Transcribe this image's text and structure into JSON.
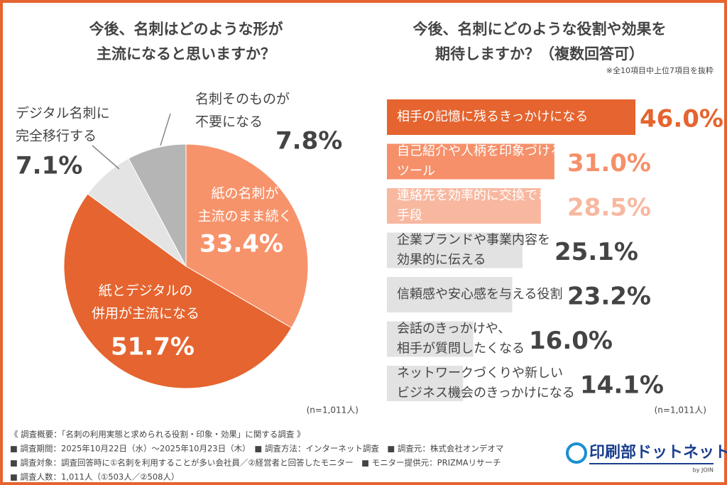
{
  "chart_data": [
    {
      "type": "pie",
      "title": [
        "今後、名刺はどのような形が",
        "主流になると思いますか？"
      ],
      "categories": [
        [
          "紙の名刺が",
          "主流のまま続く"
        ],
        [
          "紙とデジタルの",
          "併用が主流になる"
        ],
        [
          "デジタル名刺に",
          "完全移行する"
        ],
        [
          "名刺そのものが",
          "不要になる"
        ]
      ],
      "values": [
        33.4,
        51.7,
        7.1,
        7.8
      ],
      "value_labels": [
        "33.4%",
        "51.7%",
        "7.1%",
        "7.8%"
      ],
      "colors": [
        "#f7936b",
        "#e5642f",
        "#e4e4e4",
        "#b5b5b5"
      ],
      "note": "(n=1,011人)"
    },
    {
      "type": "bar",
      "title": [
        "今後、名刺にどのような役割や効果を",
        "期待しますか？（複数回答可）"
      ],
      "subtitle": "※全10項目中上位7項目を抜粋",
      "categories": [
        [
          "相手の記憶に残るきっかけになる"
        ],
        [
          "自己紹介や人柄を印象づける",
          "ツール"
        ],
        [
          "連絡先を効率的に交換できる",
          "手段"
        ],
        [
          "企業ブランドや事業内容を",
          "効果的に伝える"
        ],
        [
          "信頼感や安心感を与える役割"
        ],
        [
          "会話のきっかけや、",
          "相手が質問したくなる"
        ],
        [
          "ネットワークづくりや新しい",
          "ビジネス機会のきっかけになる"
        ]
      ],
      "values": [
        46.0,
        31.0,
        28.5,
        25.1,
        23.2,
        16.0,
        14.1
      ],
      "value_labels": [
        "46.0%",
        "31.0%",
        "28.5%",
        "25.1%",
        "23.2%",
        "16.0%",
        "14.1%"
      ],
      "colors": [
        "#e5642f",
        "#f5906a",
        "#f8b8a0",
        "#e2e2e2",
        "#e2e2e2",
        "#e2e2e2",
        "#e2e2e2"
      ],
      "label_colors": [
        "#ffffff",
        "#ffffff",
        "#ffffff",
        "#444444",
        "#444444",
        "#444444",
        "#444444"
      ],
      "value_label_colors": [
        "#e5642f",
        "#f5906a",
        "#f8b8a0",
        "#444444",
        "#444444",
        "#444444",
        "#444444"
      ],
      "note": "(n=1,011人)"
    }
  ],
  "footer": {
    "lines": [
      "《 調査概要：「名刺の利用実態と求められる役割・印象・効果」に関する調査 》",
      "■ 調査期間：2025年10月22日（水）〜2025年10月23日（木）　■ 調査方法：インターネット調査　■ 調査元：株式会社オンデオマ",
      "■ 調査対象：調査回答時に①名刺を利用することが多い会社員／②経営者と回答したモニター　■ モニター提供元：PRIZMAリサーチ",
      "■ 調査人数：1,011人（①503人／②508人）"
    ]
  },
  "logo": {
    "name": "印刷部ドットネット",
    "byline": "by JOIN"
  }
}
